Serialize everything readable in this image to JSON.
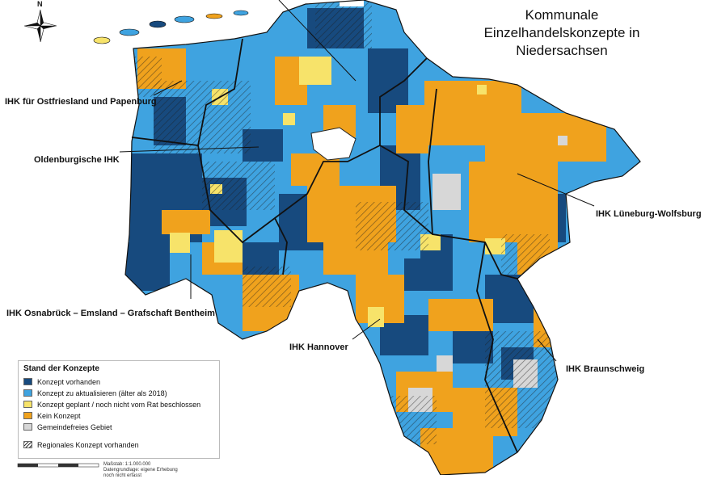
{
  "title": "Kommunale\nEinzelhandelskonzepte in\nNiedersachsen",
  "compass": {
    "north_label": "N",
    "icon": "compass-rose-icon"
  },
  "regions": [
    {
      "name": "IHK für Ostfriesland und Papenburg"
    },
    {
      "name": "Oldenburgische IHK"
    },
    {
      "name": "IHK Osnabrück – Emsland – Grafschaft Bentheim"
    },
    {
      "name": "IHK Hannover"
    },
    {
      "name": "IHK Braunschweig"
    },
    {
      "name": "IHK Lüneburg-Wolfsburg"
    }
  ],
  "legend": {
    "title": "Stand der Konzepte",
    "items": [
      {
        "label": "Konzept vorhanden",
        "color": "#174a7e"
      },
      {
        "label": "Konzept zu aktualisieren (älter als 2018)",
        "color": "#3fa3e0"
      },
      {
        "label": "Konzept geplant / noch nicht vom Rat beschlossen",
        "color": "#f7e36a"
      },
      {
        "label": "Kein Konzept",
        "color": "#f0a21d"
      },
      {
        "label": "Gemeindefreies Gebiet",
        "color": "#d7d7d7"
      }
    ],
    "hatch_label": "Regionales Konzept vorhanden"
  },
  "scale": {
    "scale_text": "Maßstab: 1:1.000.000",
    "source_text": "Datengrundlage: eigene Erhebung",
    "extra_text": "noch nicht erfasst"
  }
}
